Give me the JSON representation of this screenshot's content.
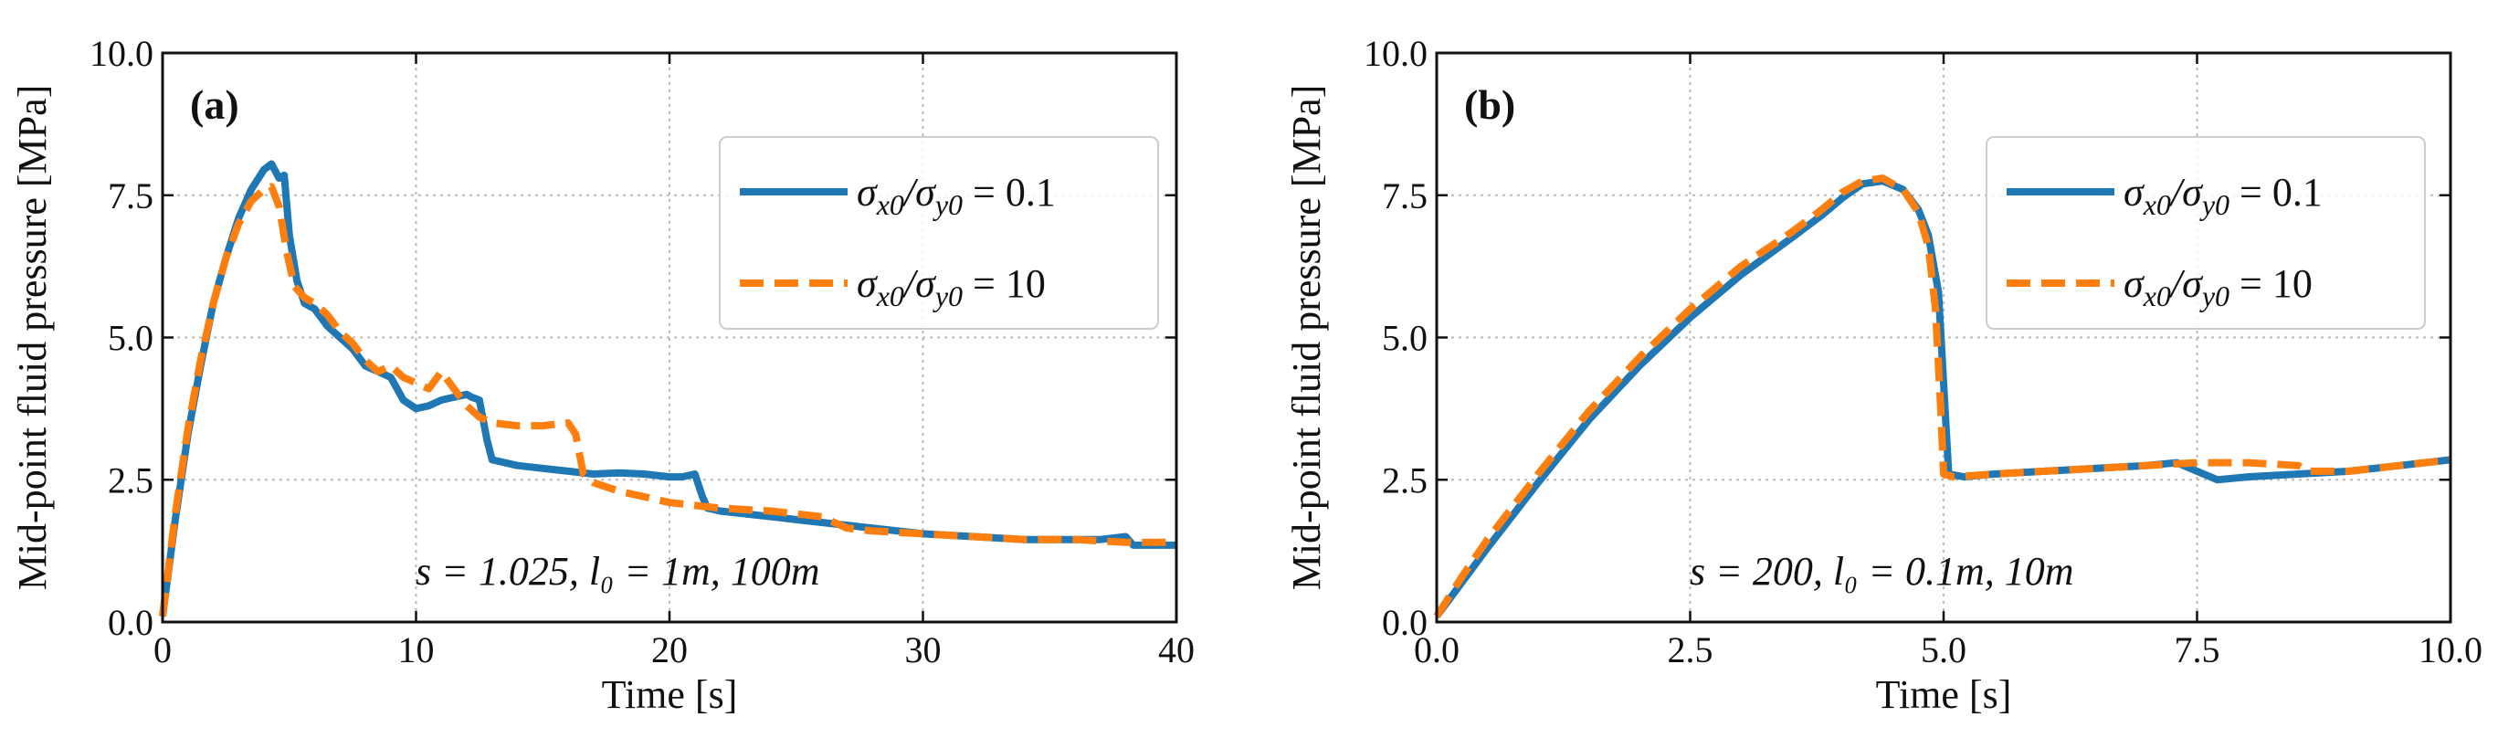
{
  "chart_data": [
    {
      "type": "line",
      "panel_label": "(a)",
      "xlabel": "Time [s]",
      "ylabel": "Mid-point fluid pressure [MPa]",
      "xlim": [
        0,
        40
      ],
      "ylim": [
        0,
        10
      ],
      "xticks": [
        0,
        10,
        20,
        30,
        40
      ],
      "yticks": [
        0,
        2.5,
        5,
        7.5,
        10
      ],
      "xtick_labels": [
        "0",
        "10",
        "20",
        "30",
        "40"
      ],
      "ytick_labels": [
        "0.0",
        "2.5",
        "5.0",
        "7.5",
        "10.0"
      ],
      "grid": true,
      "legend_position": "upper-right",
      "annotation": "s = 1.025, l₀ = 1m, 100m",
      "series": [
        {
          "name": "σx0/σy0 = 0.1",
          "color": "#1f77b4",
          "style": "solid",
          "x": [
            0,
            0.5,
            1,
            1.5,
            2,
            2.5,
            3,
            3.5,
            4,
            4.3,
            4.6,
            4.8,
            5.0,
            5.3,
            5.6,
            6,
            6.5,
            7,
            7.5,
            8,
            8.5,
            9,
            9.5,
            10,
            10.5,
            11,
            11.5,
            12,
            12.2,
            12.5,
            12.8,
            13,
            14,
            15,
            16,
            17,
            18,
            19,
            20,
            20.5,
            21,
            21.3,
            21.5,
            22,
            23,
            24,
            25,
            26,
            27,
            28,
            30,
            32,
            34,
            36,
            37,
            38,
            38.3,
            39,
            40
          ],
          "y": [
            0.1,
            1.8,
            3.3,
            4.5,
            5.6,
            6.4,
            7.1,
            7.6,
            7.95,
            8.05,
            7.8,
            7.85,
            6.8,
            6.0,
            5.6,
            5.5,
            5.2,
            5.0,
            4.8,
            4.5,
            4.4,
            4.3,
            3.9,
            3.75,
            3.8,
            3.9,
            3.95,
            4.0,
            3.95,
            3.9,
            3.2,
            2.85,
            2.75,
            2.7,
            2.65,
            2.6,
            2.62,
            2.6,
            2.55,
            2.55,
            2.6,
            2.2,
            2.0,
            1.95,
            1.9,
            1.85,
            1.8,
            1.75,
            1.7,
            1.65,
            1.55,
            1.5,
            1.45,
            1.45,
            1.45,
            1.5,
            1.35,
            1.35,
            1.35
          ]
        },
        {
          "name": "σx0/σy0 = 10",
          "color": "#ff7f0e",
          "style": "dashed",
          "x": [
            0,
            0.5,
            1,
            1.5,
            2,
            2.5,
            3,
            3.5,
            4,
            4.3,
            4.6,
            4.9,
            5.2,
            5.6,
            6,
            6.5,
            7,
            7.5,
            8,
            8.5,
            9,
            9.5,
            10,
            10.5,
            11,
            11.5,
            12,
            12.5,
            13,
            14,
            15,
            16,
            16.3,
            16.6,
            17,
            18,
            19,
            20,
            22,
            24,
            25,
            26,
            26.5,
            27,
            28,
            30,
            32,
            34,
            36,
            38,
            40
          ],
          "y": [
            0.1,
            1.9,
            3.4,
            4.6,
            5.6,
            6.4,
            7.0,
            7.4,
            7.6,
            7.65,
            7.3,
            6.5,
            5.9,
            5.7,
            5.6,
            5.4,
            5.1,
            4.9,
            4.6,
            4.4,
            4.5,
            4.3,
            4.2,
            4.1,
            4.4,
            4.1,
            3.8,
            3.6,
            3.5,
            3.45,
            3.45,
            3.5,
            3.3,
            2.6,
            2.45,
            2.3,
            2.2,
            2.1,
            2.0,
            1.95,
            1.9,
            1.85,
            1.75,
            1.65,
            1.6,
            1.55,
            1.5,
            1.45,
            1.45,
            1.4,
            1.4
          ]
        }
      ]
    },
    {
      "type": "line",
      "panel_label": "(b)",
      "xlabel": "Time [s]",
      "ylabel": "Mid-point fluid pressure [MPa]",
      "xlim": [
        0,
        10
      ],
      "ylim": [
        0,
        10
      ],
      "xticks": [
        0,
        2.5,
        5,
        7.5,
        10
      ],
      "yticks": [
        0,
        2.5,
        5,
        7.5,
        10
      ],
      "xtick_labels": [
        "0.0",
        "2.5",
        "5.0",
        "7.5",
        "10.0"
      ],
      "ytick_labels": [
        "0.0",
        "2.5",
        "5.0",
        "7.5",
        "10.0"
      ],
      "grid": true,
      "legend_position": "upper-right",
      "annotation": "s = 200, l₀ = 0.1m, 10m",
      "series": [
        {
          "name": "σx0/σy0 = 0.1",
          "color": "#1f77b4",
          "style": "solid",
          "x": [
            0,
            0.25,
            0.5,
            1,
            1.5,
            2,
            2.5,
            3,
            3.5,
            3.8,
            4.0,
            4.2,
            4.4,
            4.6,
            4.75,
            4.85,
            4.95,
            5.0,
            5.05,
            5.2,
            5.5,
            6,
            6.5,
            7,
            7.3,
            7.5,
            7.7,
            8,
            8.5,
            9,
            9.5,
            10
          ],
          "y": [
            0.1,
            0.7,
            1.3,
            2.45,
            3.55,
            4.5,
            5.35,
            6.1,
            6.75,
            7.15,
            7.45,
            7.7,
            7.75,
            7.6,
            7.25,
            6.8,
            5.8,
            4.2,
            2.6,
            2.55,
            2.6,
            2.65,
            2.7,
            2.75,
            2.8,
            2.65,
            2.5,
            2.55,
            2.6,
            2.65,
            2.75,
            2.85
          ]
        },
        {
          "name": "σx0/σy0 = 10",
          "color": "#ff7f0e",
          "style": "dashed",
          "x": [
            0,
            0.25,
            0.5,
            1,
            1.5,
            2,
            2.5,
            3,
            3.5,
            3.8,
            4.0,
            4.2,
            4.4,
            4.6,
            4.75,
            4.85,
            4.92,
            4.97,
            5.0,
            5.1,
            5.5,
            6,
            6.5,
            7,
            7.5,
            8,
            8.5,
            8.6,
            9,
            9.5,
            10
          ],
          "y": [
            0.1,
            0.8,
            1.45,
            2.6,
            3.7,
            4.65,
            5.5,
            6.25,
            6.85,
            7.25,
            7.55,
            7.75,
            7.8,
            7.6,
            7.2,
            6.6,
            5.5,
            3.8,
            2.6,
            2.55,
            2.6,
            2.65,
            2.7,
            2.75,
            2.8,
            2.8,
            2.75,
            2.65,
            2.65,
            2.75,
            2.85
          ]
        }
      ]
    }
  ]
}
